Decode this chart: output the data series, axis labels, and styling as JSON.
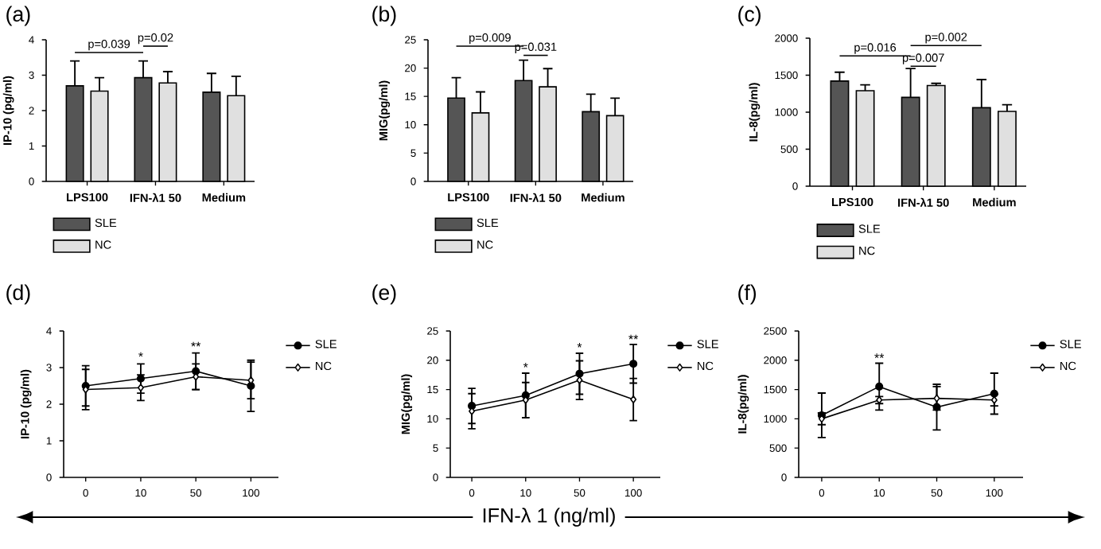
{
  "chart_data": [
    {
      "type": "bar",
      "title": "(a)",
      "ylabel": "IP-10 (pg/ml)",
      "categories": [
        "LPS100",
        "IFN-λ1 50",
        "Medium"
      ],
      "ylim": [
        0,
        4
      ],
      "yticks": [
        0,
        1,
        2,
        3,
        4
      ],
      "legend": "bottom left",
      "annotations": [
        "p=0.039",
        "p=0.02"
      ],
      "series": [
        {
          "name": "SLE",
          "color": "#555555",
          "values": [
            2.7,
            2.93,
            2.52
          ],
          "errors": [
            [
              2.7,
              3.4
            ],
            [
              2.93,
              3.4
            ],
            [
              2.52,
              3.05
            ]
          ]
        },
        {
          "name": "NC",
          "color": "#e0e0e0",
          "values": [
            2.55,
            2.78,
            2.42
          ],
          "errors": [
            [
              2.55,
              2.93
            ],
            [
              2.78,
              3.1
            ],
            [
              2.42,
              2.97
            ]
          ]
        }
      ]
    },
    {
      "type": "bar",
      "title": "(b)",
      "ylabel": "MIG(pg/ml)",
      "categories": [
        "LPS100",
        "IFN-λ1 50",
        "Medium"
      ],
      "ylim": [
        0,
        25
      ],
      "yticks": [
        0,
        5,
        10,
        15,
        20,
        25
      ],
      "legend": "bottom left",
      "annotations": [
        "p=0.009",
        "p=0.031"
      ],
      "series": [
        {
          "name": "SLE",
          "color": "#555555",
          "values": [
            14.7,
            17.8,
            12.3
          ],
          "errors": [
            [
              14.7,
              18.3
            ],
            [
              17.8,
              21.4
            ],
            [
              12.3,
              15.4
            ]
          ]
        },
        {
          "name": "NC",
          "color": "#e0e0e0",
          "values": [
            12.1,
            16.7,
            11.6
          ],
          "errors": [
            [
              12.1,
              15.8
            ],
            [
              16.7,
              19.9
            ],
            [
              11.6,
              14.7
            ]
          ]
        }
      ]
    },
    {
      "type": "bar",
      "title": "(c)",
      "ylabel": "IL-8(pg/ml)",
      "categories": [
        "LPS100",
        "IFN-λ1 50",
        "Medium"
      ],
      "ylim": [
        0,
        2000
      ],
      "yticks": [
        0,
        500,
        1000,
        1500,
        2000
      ],
      "legend": "bottom left",
      "annotations": [
        "p=0.016",
        "p=0.002",
        "p=0.007"
      ],
      "series": [
        {
          "name": "SLE",
          "color": "#555555",
          "values": [
            1420,
            1200,
            1060
          ],
          "errors": [
            [
              1420,
              1540
            ],
            [
              1200,
              1590
            ],
            [
              1060,
              1440
            ]
          ]
        },
        {
          "name": "NC",
          "color": "#e0e0e0",
          "values": [
            1290,
            1360,
            1010
          ],
          "errors": [
            [
              1290,
              1370
            ],
            [
              1360,
              1390
            ],
            [
              1010,
              1100
            ]
          ]
        }
      ]
    },
    {
      "type": "line",
      "title": "(d)",
      "ylabel": "IP-10 (pg/ml)",
      "categories": [
        "0",
        "10",
        "50",
        "100"
      ],
      "ylim": [
        0,
        4
      ],
      "yticks": [
        0,
        1,
        2,
        3,
        4
      ],
      "legend": "right",
      "annotations": [
        {
          "text": "*",
          "x": "10",
          "y": 3.3
        },
        {
          "text": "**",
          "x": "50",
          "y": 3.58
        }
      ],
      "series": [
        {
          "name": "SLE",
          "color": "#000000",
          "marker": "circle",
          "values": [
            2.5,
            2.7,
            2.9,
            2.5
          ],
          "errors": [
            0.55,
            0.4,
            0.5,
            0.7
          ]
        },
        {
          "name": "NC",
          "color": "#000000",
          "marker": "diamond",
          "values": [
            2.4,
            2.45,
            2.75,
            2.65
          ],
          "errors": [
            0.55,
            0.35,
            0.35,
            0.5
          ]
        }
      ]
    },
    {
      "type": "line",
      "title": "(e)",
      "ylabel": "MIG(pg/ml)",
      "xlabel": "IFN-λ 1 (ng/ml)",
      "categories": [
        "0",
        "10",
        "50",
        "100"
      ],
      "ylim": [
        0,
        25
      ],
      "yticks": [
        0,
        5,
        10,
        15,
        20,
        25
      ],
      "legend": "right",
      "annotations": [
        {
          "text": "*",
          "x": "10",
          "y": 18.8
        },
        {
          "text": "*",
          "x": "50",
          "y": 22.2
        },
        {
          "text": "**",
          "x": "100",
          "y": 23.6
        }
      ],
      "series": [
        {
          "name": "SLE",
          "color": "#000000",
          "marker": "circle",
          "values": [
            12.2,
            14,
            17.7,
            19.4
          ],
          "errors": [
            3,
            3.8,
            3.5,
            3.3
          ]
        },
        {
          "name": "NC",
          "color": "#000000",
          "marker": "diamond",
          "values": [
            11.3,
            13.2,
            16.6,
            13.3
          ],
          "errors": [
            3,
            3,
            3.3,
            3.6
          ]
        }
      ]
    },
    {
      "type": "line",
      "title": "(f)",
      "ylabel": "IL-8(pg/ml)",
      "categories": [
        "0",
        "10",
        "50",
        "100"
      ],
      "ylim": [
        0,
        2500
      ],
      "yticks": [
        0,
        500,
        1000,
        1500,
        2000,
        2500
      ],
      "legend": "right",
      "annotations": [
        {
          "text": "**",
          "x": "10",
          "y": 2040
        }
      ],
      "series": [
        {
          "name": "SLE",
          "color": "#000000",
          "marker": "circle",
          "values": [
            1060,
            1550,
            1200,
            1430
          ],
          "errors": [
            380,
            400,
            390,
            350
          ]
        },
        {
          "name": "NC",
          "color": "#000000",
          "marker": "diamond",
          "values": [
            1000,
            1320,
            1350,
            1320
          ],
          "errors": [
            100,
            60,
            200,
            100
          ]
        }
      ]
    }
  ]
}
